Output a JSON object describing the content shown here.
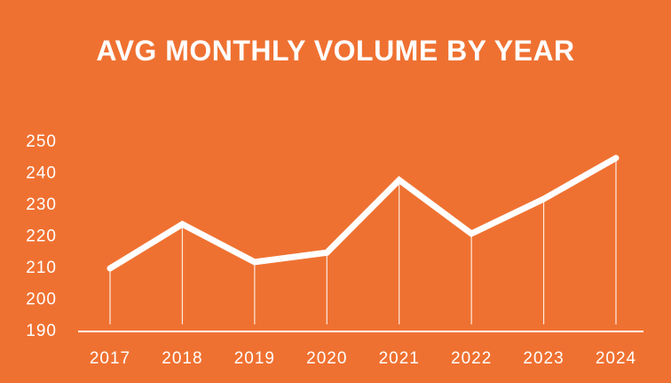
{
  "chart_data": {
    "type": "line",
    "title": "AVG MONTHLY VOLUME BY YEAR",
    "categories": [
      "2017",
      "2018",
      "2019",
      "2020",
      "2021",
      "2022",
      "2023",
      "2024"
    ],
    "values": [
      210,
      224,
      212,
      215,
      238,
      221,
      232,
      245
    ],
    "color": "#ffffff",
    "ylim": [
      190,
      250
    ],
    "yticks": [
      190,
      200,
      210,
      220,
      230,
      240,
      250
    ],
    "grid": false,
    "drop_lines": true
  }
}
